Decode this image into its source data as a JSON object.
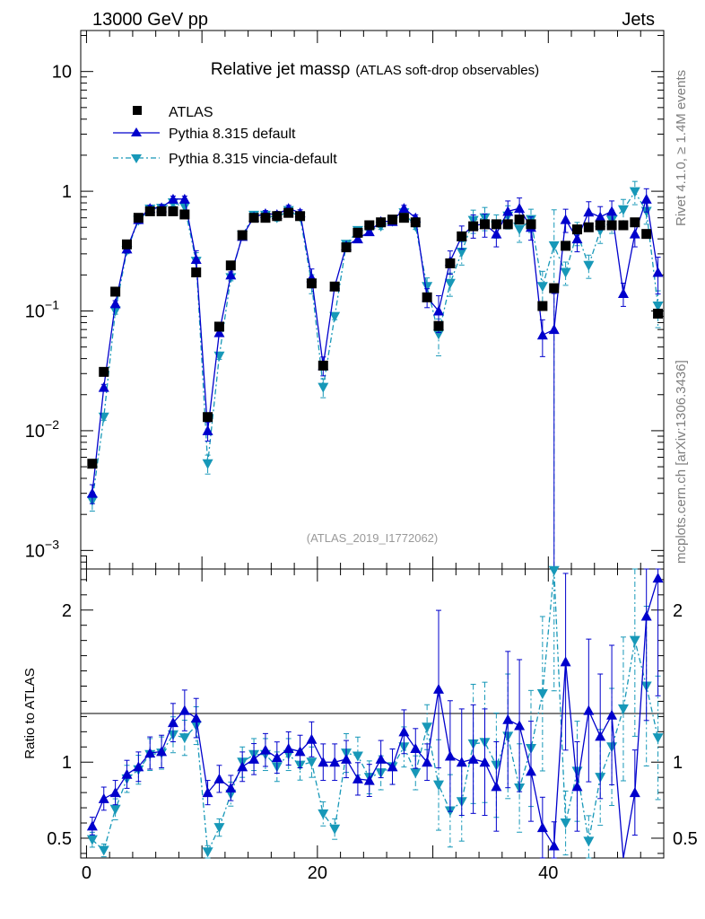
{
  "header": {
    "energy": "13000 GeV pp",
    "process": "Jets"
  },
  "sidebar": {
    "version": "Rivet 4.1.0, ≥ 1.4M events",
    "source": "mcplots.cern.ch [arXiv:1306.3436]"
  },
  "colors": {
    "data": "#000000",
    "mc1": "#0000cc",
    "mc2": "#1798b8"
  },
  "chart_data": {
    "type": "line",
    "title": "Relative jet massρ",
    "subtitle": "(ATLAS soft-drop observables)",
    "analysis": "(ATLAS_2019_I1772062)",
    "xlabel": "",
    "ylabel_ratio": "Ratio to ATLAS",
    "xlim": [
      -0.5,
      50
    ],
    "ylim_main": [
      0.0007,
      22
    ],
    "ylim_ratio": [
      0.37,
      2.27
    ],
    "y_scale_main": "log",
    "x_ticks": [
      "0",
      "20",
      "40"
    ],
    "y_ticks_main": [
      {
        "base": "10",
        "exp": "−3"
      },
      {
        "base": "10",
        "exp": "−2"
      },
      {
        "base": "10",
        "exp": "−1"
      },
      {
        "base": "1",
        "exp": ""
      },
      {
        "base": "10",
        "exp": ""
      }
    ],
    "y_ticks_ratio": [
      "0.5",
      "1",
      "2"
    ],
    "legend": [
      "ATLAS",
      "Pythia 8.315 default",
      "Pythia 8.315 vincia-default"
    ],
    "x": [
      0.5,
      1.5,
      2.5,
      3.5,
      4.5,
      5.5,
      6.5,
      7.5,
      8.5,
      9.5,
      10.5,
      11.5,
      12.5,
      13.5,
      14.5,
      15.5,
      16.5,
      17.5,
      18.5,
      19.5,
      20.5,
      21.5,
      22.5,
      23.5,
      24.5,
      25.5,
      26.5,
      27.5,
      28.5,
      29.5,
      30.5,
      31.5,
      32.5,
      33.5,
      34.5,
      35.5,
      36.5,
      37.5,
      38.5,
      39.5,
      40.5,
      41.5,
      42.5,
      43.5,
      44.5,
      45.5,
      46.5,
      47.5,
      48.5,
      49.5
    ],
    "series": [
      {
        "name": "ATLAS",
        "values": [
          0.0053,
          0.031,
          0.145,
          0.36,
          0.6,
          0.68,
          0.68,
          0.68,
          0.64,
          0.21,
          0.013,
          0.074,
          0.24,
          0.43,
          0.6,
          0.6,
          0.62,
          0.66,
          0.62,
          0.17,
          0.035,
          0.16,
          0.34,
          0.45,
          0.52,
          0.55,
          0.58,
          0.6,
          0.55,
          0.13,
          0.075,
          0.25,
          0.42,
          0.51,
          0.53,
          0.53,
          0.53,
          0.58,
          0.53,
          0.11,
          0.155,
          0.35,
          0.48,
          0.5,
          0.52,
          0.52,
          0.52,
          0.55,
          0.44,
          0.095
        ]
      },
      {
        "name": "Pythia 8.315 default",
        "values": [
          0.003,
          0.023,
          0.115,
          0.33,
          0.58,
          0.72,
          0.73,
          0.86,
          0.86,
          0.27,
          0.01,
          0.066,
          0.2,
          0.42,
          0.61,
          0.65,
          0.64,
          0.72,
          0.66,
          0.19,
          0.035,
          0.16,
          0.35,
          0.4,
          0.46,
          0.56,
          0.56,
          0.72,
          0.6,
          0.13,
          0.1,
          0.26,
          0.42,
          0.52,
          0.53,
          0.44,
          0.68,
          0.72,
          0.5,
          0.063,
          0.07,
          0.58,
          0.4,
          0.67,
          0.61,
          0.68,
          0.14,
          0.44,
          0.86,
          0.21
        ]
      },
      {
        "name": "Pythia 8.315 vincia-default",
        "values": [
          0.0026,
          0.013,
          0.1,
          0.32,
          0.57,
          0.71,
          0.72,
          0.8,
          0.74,
          0.26,
          0.0053,
          0.042,
          0.19,
          0.43,
          0.63,
          0.63,
          0.6,
          0.69,
          0.61,
          0.17,
          0.023,
          0.09,
          0.36,
          0.47,
          0.47,
          0.51,
          0.56,
          0.66,
          0.51,
          0.16,
          0.064,
          0.17,
          0.31,
          0.57,
          0.6,
          0.52,
          0.62,
          0.48,
          0.58,
          0.16,
          0.35,
          0.21,
          0.45,
          0.24,
          0.47,
          0.57,
          0.7,
          0.99,
          0.68,
          0.11
        ]
      }
    ],
    "ratio_series": [
      {
        "name": "Pythia 8.315 default",
        "values": [
          0.58,
          0.76,
          0.8,
          0.92,
          0.97,
          1.06,
          1.07,
          1.26,
          1.34,
          1.29,
          0.8,
          0.89,
          0.83,
          0.97,
          1.02,
          1.08,
          1.03,
          1.09,
          1.07,
          1.15,
          1.0,
          1.0,
          1.02,
          0.89,
          0.88,
          1.02,
          0.97,
          1.2,
          1.09,
          1.0,
          1.48,
          1.04,
          1.0,
          1.02,
          1.0,
          0.84,
          1.28,
          1.24,
          0.94,
          0.57,
          0.45,
          1.66,
          0.84,
          1.34,
          1.17,
          1.31,
          0.27,
          0.8,
          1.96,
          2.21
        ]
      },
      {
        "name": "Pythia 8.315 vincia-default",
        "values": [
          0.49,
          0.42,
          0.69,
          0.89,
          0.95,
          1.05,
          1.06,
          1.18,
          1.16,
          1.24,
          0.41,
          0.57,
          0.79,
          1.0,
          1.05,
          1.05,
          0.97,
          1.05,
          0.98,
          1.0,
          0.66,
          0.56,
          1.06,
          1.04,
          0.9,
          0.93,
          0.97,
          1.1,
          0.93,
          1.23,
          0.85,
          0.68,
          0.74,
          1.12,
          1.13,
          0.98,
          1.17,
          0.83,
          1.09,
          1.45,
          2.26,
          0.6,
          0.94,
          0.48,
          0.9,
          1.1,
          1.35,
          1.8,
          1.5,
          1.16
        ]
      }
    ]
  }
}
